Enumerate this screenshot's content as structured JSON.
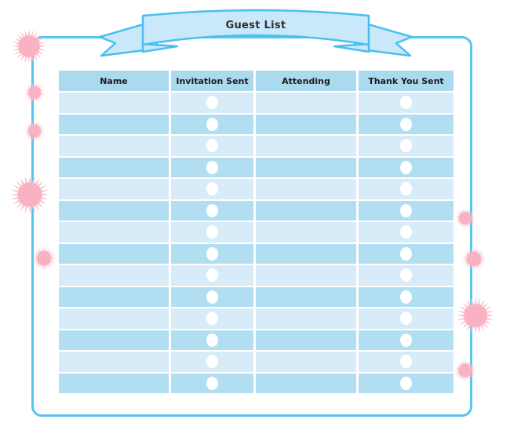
{
  "title": "Guest List",
  "table": {
    "columns": [
      {
        "label": "Name",
        "key": "name"
      },
      {
        "label": "Invitation Sent",
        "key": "invitation_sent"
      },
      {
        "label": "Attending",
        "key": "attending"
      },
      {
        "label": "Thank You Sent",
        "key": "thank_you_sent"
      }
    ],
    "row_count": 14,
    "rows": [
      {
        "name": "",
        "invitation_sent": false,
        "attending": "",
        "thank_you_sent": false
      },
      {
        "name": "",
        "invitation_sent": false,
        "attending": "",
        "thank_you_sent": false
      },
      {
        "name": "",
        "invitation_sent": false,
        "attending": "",
        "thank_you_sent": false
      },
      {
        "name": "",
        "invitation_sent": false,
        "attending": "",
        "thank_you_sent": false
      },
      {
        "name": "",
        "invitation_sent": false,
        "attending": "",
        "thank_you_sent": false
      },
      {
        "name": "",
        "invitation_sent": false,
        "attending": "",
        "thank_you_sent": false
      },
      {
        "name": "",
        "invitation_sent": false,
        "attending": "",
        "thank_you_sent": false
      },
      {
        "name": "",
        "invitation_sent": false,
        "attending": "",
        "thank_you_sent": false
      },
      {
        "name": "",
        "invitation_sent": false,
        "attending": "",
        "thank_you_sent": false
      },
      {
        "name": "",
        "invitation_sent": false,
        "attending": "",
        "thank_you_sent": false
      },
      {
        "name": "",
        "invitation_sent": false,
        "attending": "",
        "thank_you_sent": false
      },
      {
        "name": "",
        "invitation_sent": false,
        "attending": "",
        "thank_you_sent": false
      },
      {
        "name": "",
        "invitation_sent": false,
        "attending": "",
        "thank_you_sent": false
      },
      {
        "name": "",
        "invitation_sent": false,
        "attending": "",
        "thank_you_sent": false
      }
    ]
  },
  "decorations": {
    "shape": "pink-starburst-flower",
    "count": 9
  },
  "colors": {
    "accent_blue": "#58C5F1",
    "ribbon_fill": "#C9E9FB",
    "ribbon_stroke": "#49BFEF",
    "header_bg": "#ABDAEF",
    "row_dark": "#B2DEF2",
    "row_light": "#D7ECF8",
    "checkbox_white": "#FFFFFF",
    "flower_pink": "#F9BDCA",
    "flower_core": "#F8B2C1",
    "title_text": "#2F2F2F"
  }
}
